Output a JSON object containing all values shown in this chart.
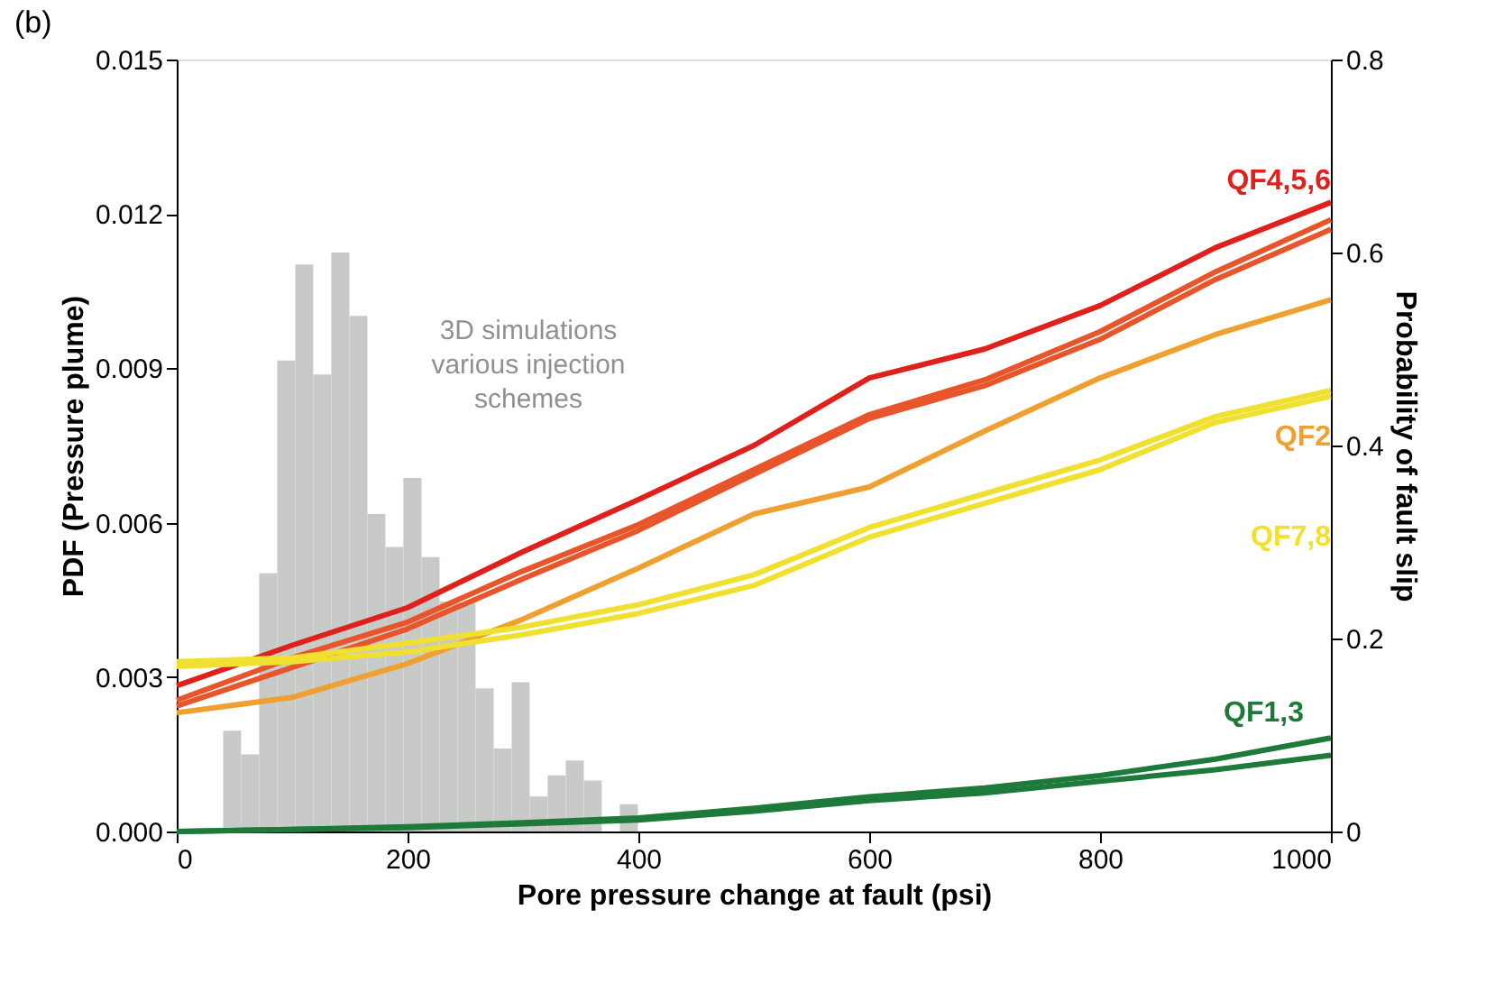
{
  "chart_data": {
    "type": "histogram",
    "title": "(b)",
    "xlabel": "Pore pressure change at fault (psi)",
    "ylabel": "PDF (Pressure plume)",
    "y2label": "Probability of fault slip",
    "bins": [
      40.2,
      55.8,
      71.4,
      87.1,
      102.7,
      118.3,
      133.9,
      149.6,
      165.2,
      180.8,
      196.4,
      212.1,
      227.7,
      243.3,
      258.9,
      274.6,
      290.2,
      305.8,
      321.4,
      337.1,
      352.7,
      368.3,
      383.9,
      399.6
    ],
    "values": [
      0.00196,
      0.0015,
      0.00502,
      0.00915,
      0.01102,
      0.00888,
      0.01125,
      0.01002,
      0.00617,
      0.00553,
      0.00687,
      0.00533,
      0.00447,
      0.00445,
      0.00278,
      0.00161,
      0.0029,
      0.00068,
      0.00109,
      0.00138,
      0.00099,
      0,
      0.00053
    ],
    "color": "#c8cac8",
    "x": [
      0,
      100,
      200,
      300,
      400,
      500,
      600,
      700,
      800,
      900,
      1000
    ],
    "series": [
      {
        "name": "QF4,5,6",
        "type": "line",
        "axis": "y2",
        "color": "#e0201b",
        "values": [
          0.151,
          0.193,
          0.232,
          0.29,
          0.344,
          0.4,
          0.47,
          0.5,
          0.545,
          0.605,
          0.652
        ]
      },
      {
        "type": "line",
        "axis": "y2",
        "color": "#e8552a",
        "values": [
          0.136,
          0.18,
          0.217,
          0.27,
          0.318,
          0.375,
          0.432,
          0.468,
          0.518,
          0.58,
          0.634
        ]
      },
      {
        "type": "line",
        "axis": "y2",
        "color": "#e8552a",
        "values": [
          0.13,
          0.17,
          0.21,
          0.262,
          0.312,
          0.37,
          0.428,
          0.462,
          0.51,
          0.572,
          0.624
        ]
      },
      {
        "name": "QF2",
        "type": "line",
        "axis": "y2",
        "color": "#f0a030",
        "values": [
          0.123,
          0.139,
          0.174,
          0.22,
          0.273,
          0.329,
          0.357,
          0.415,
          0.47,
          0.515,
          0.551
        ]
      },
      {
        "name": "QF7,8",
        "type": "line",
        "axis": "y2",
        "color": "#f0e030",
        "values": [
          0.176,
          0.18,
          0.195,
          0.212,
          0.235,
          0.266,
          0.315,
          0.35,
          0.385,
          0.43,
          0.457
        ]
      },
      {
        "type": "line",
        "axis": "y2",
        "color": "#f0e030",
        "values": [
          0.171,
          0.176,
          0.186,
          0.204,
          0.226,
          0.255,
          0.305,
          0.34,
          0.375,
          0.424,
          0.451
        ]
      },
      {
        "name": "QF1,3",
        "type": "line",
        "axis": "y2",
        "color": "#1e7a3a",
        "values": [
          0,
          0.002,
          0.005,
          0.009,
          0.014,
          0.024,
          0.036,
          0.045,
          0.058,
          0.075,
          0.097
        ]
      },
      {
        "type": "line",
        "axis": "y2",
        "color": "#1e7a3a",
        "values": [
          0,
          0.002,
          0.004,
          0.008,
          0.012,
          0.021,
          0.032,
          0.04,
          0.052,
          0.064,
          0.079
        ]
      }
    ],
    "xlim": [
      0,
      1000
    ],
    "xticks": [
      0,
      200,
      400,
      600,
      800,
      1000
    ],
    "ylim": [
      0,
      0.015
    ],
    "yticks": [
      {
        "value": 0,
        "label": "0.000"
      },
      0.003,
      0.006,
      0.009,
      0.012,
      0.015
    ],
    "y2lim": [
      0,
      0.8
    ],
    "y2ticks": [
      0,
      0.2,
      0.4,
      0.6,
      0.8
    ],
    "annotations": [
      "3D simulations\nvarious injection\nschemes"
    ],
    "grid": false,
    "line_style": "solid",
    "marker": "none"
  }
}
